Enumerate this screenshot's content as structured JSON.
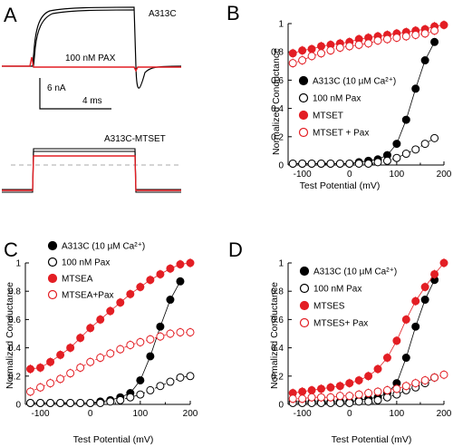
{
  "panel_letters": {
    "A": "A",
    "B": "B",
    "C": "C",
    "D": "D"
  },
  "traces": {
    "top_label": "A313C",
    "pax_label": "100 nM PAX",
    "scale_current": "6 nA",
    "scale_time": "4 ms",
    "bottom_label": "A313C-MTSET",
    "colors": {
      "control": "#000000",
      "treated": "#e31e24",
      "baseline": "#aaaaaa"
    }
  },
  "chart_data": [
    {
      "panel": "B",
      "type": "scatter",
      "xlabel": "Test Potential (mV)",
      "ylabel": "Normalized Conductance",
      "xlim": [
        -130,
        200
      ],
      "ylim": [
        0,
        1.0
      ],
      "xticks": [
        "-100",
        "0",
        "100",
        "200"
      ],
      "yticks": [
        "0",
        "0.2",
        "0.4",
        "0.6",
        "0.8",
        "1"
      ],
      "legend_position": "center-right",
      "x": [
        -120,
        -100,
        -80,
        -60,
        -40,
        -20,
        0,
        20,
        40,
        60,
        80,
        100,
        120,
        140,
        160,
        180,
        200
      ],
      "series": [
        {
          "name": "A313C (10 µM Ca²⁺)",
          "marker": "filled-black",
          "values": [
            0.01,
            0.01,
            0.01,
            0.01,
            0.01,
            0.01,
            0.01,
            0.02,
            0.03,
            0.04,
            0.07,
            0.15,
            0.32,
            0.54,
            0.74,
            0.87,
            null
          ]
        },
        {
          "name": "100 nM Pax",
          "marker": "open-black",
          "values": [
            0.01,
            0.01,
            0.01,
            0.01,
            0.01,
            0.01,
            0.01,
            0.01,
            0.01,
            0.02,
            0.03,
            0.05,
            0.08,
            0.11,
            0.15,
            0.19,
            null
          ]
        },
        {
          "name": "MTSET",
          "marker": "filled-red",
          "values": [
            0.79,
            0.81,
            0.82,
            0.84,
            0.85,
            0.86,
            0.87,
            0.89,
            0.9,
            0.91,
            0.92,
            0.93,
            0.94,
            0.95,
            0.96,
            0.98,
            0.99
          ]
        },
        {
          "name": "MTSET + Pax",
          "marker": "open-red",
          "values": [
            0.72,
            0.74,
            0.77,
            0.79,
            0.81,
            0.83,
            0.84,
            0.85,
            0.86,
            0.88,
            0.89,
            0.9,
            0.91,
            0.92,
            0.93,
            0.95,
            null
          ]
        }
      ]
    },
    {
      "panel": "C",
      "type": "scatter",
      "xlabel": "Test Potential (mV)",
      "ylabel": "Normalized Conductance",
      "xlim": [
        -130,
        200
      ],
      "ylim": [
        0,
        1.0
      ],
      "xticks": [
        "-100",
        "0",
        "100",
        "200"
      ],
      "yticks": [
        "0",
        "0.2",
        "0.4",
        "0.6",
        "0.8",
        "1"
      ],
      "legend_position": "top-left",
      "x": [
        -120,
        -100,
        -80,
        -60,
        -40,
        -20,
        0,
        20,
        40,
        60,
        80,
        100,
        120,
        140,
        160,
        180,
        200
      ],
      "series": [
        {
          "name": "A313C (10 µM Ca²⁺)",
          "marker": "filled-black",
          "values": [
            0.01,
            0.01,
            0.01,
            0.01,
            0.01,
            0.01,
            0.01,
            0.02,
            0.03,
            0.05,
            0.08,
            0.17,
            0.34,
            0.55,
            0.74,
            0.87,
            null
          ]
        },
        {
          "name": "100 nM Pax",
          "marker": "open-black",
          "values": [
            0.01,
            0.01,
            0.01,
            0.01,
            0.01,
            0.01,
            0.01,
            0.01,
            0.02,
            0.03,
            0.05,
            0.07,
            0.1,
            0.13,
            0.16,
            0.19,
            0.2
          ]
        },
        {
          "name": "MTSEA",
          "marker": "filled-red",
          "values": [
            0.25,
            0.26,
            0.3,
            0.35,
            0.4,
            0.47,
            0.54,
            0.6,
            0.66,
            0.72,
            0.78,
            0.83,
            0.88,
            0.92,
            0.96,
            0.99,
            1.0
          ]
        },
        {
          "name": "MTSEA+Pax",
          "marker": "open-red",
          "values": [
            0.09,
            0.12,
            0.15,
            0.18,
            0.22,
            0.26,
            0.3,
            0.33,
            0.36,
            0.39,
            0.42,
            0.44,
            0.46,
            0.48,
            0.5,
            0.51,
            0.51
          ]
        }
      ]
    },
    {
      "panel": "D",
      "type": "scatter",
      "xlabel": "Test Potential (mV)",
      "ylabel": "Normalized Conductance",
      "xlim": [
        -130,
        200
      ],
      "ylim": [
        0,
        1.0
      ],
      "xticks": [
        "-100",
        "0",
        "100",
        "200"
      ],
      "yticks": [
        "0",
        "0.2",
        "0.4",
        "0.6",
        "0.8",
        "1"
      ],
      "legend_position": "top-right",
      "x": [
        -120,
        -100,
        -80,
        -60,
        -40,
        -20,
        0,
        20,
        40,
        60,
        80,
        100,
        120,
        140,
        160,
        180,
        200
      ],
      "series": [
        {
          "name": "A313C (10 µM Ca²⁺)",
          "marker": "filled-black",
          "values": [
            0.02,
            0.02,
            0.02,
            0.02,
            0.02,
            0.02,
            0.02,
            0.03,
            0.04,
            0.05,
            0.08,
            0.15,
            0.33,
            0.55,
            0.74,
            0.88,
            null
          ]
        },
        {
          "name": "100 nM Pax",
          "marker": "open-black",
          "values": [
            0.01,
            0.01,
            0.01,
            0.01,
            0.01,
            0.01,
            0.01,
            0.02,
            0.02,
            0.03,
            0.05,
            0.07,
            0.1,
            0.12,
            0.15,
            0.19,
            null
          ]
        },
        {
          "name": "MTSES",
          "marker": "filled-red",
          "values": [
            0.08,
            0.09,
            0.1,
            0.11,
            0.12,
            0.13,
            0.15,
            0.17,
            0.2,
            0.25,
            0.33,
            0.45,
            0.6,
            0.73,
            0.83,
            0.92,
            1.0
          ]
        },
        {
          "name": "MTSES+ Pax",
          "marker": "open-red",
          "values": [
            0.04,
            0.04,
            0.05,
            0.05,
            0.05,
            0.06,
            0.06,
            0.07,
            0.08,
            0.09,
            0.1,
            0.11,
            0.13,
            0.15,
            0.17,
            0.19,
            0.21
          ]
        }
      ]
    }
  ]
}
